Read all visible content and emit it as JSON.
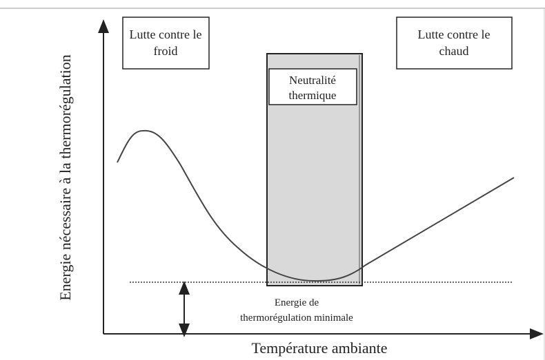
{
  "axes": {
    "y_label": "Energie nécessaire à la thermorégulation",
    "x_label": "Température ambiante"
  },
  "boxes": [
    {
      "lines": [
        "Lutte contre le",
        "froid"
      ]
    },
    {
      "lines": [
        "Neutralité",
        "thermique"
      ]
    },
    {
      "lines": [
        "Lutte contre le",
        "chaud"
      ]
    }
  ],
  "annotation": {
    "lines": [
      "Energie de",
      "thermorégulation minimale"
    ]
  }
}
